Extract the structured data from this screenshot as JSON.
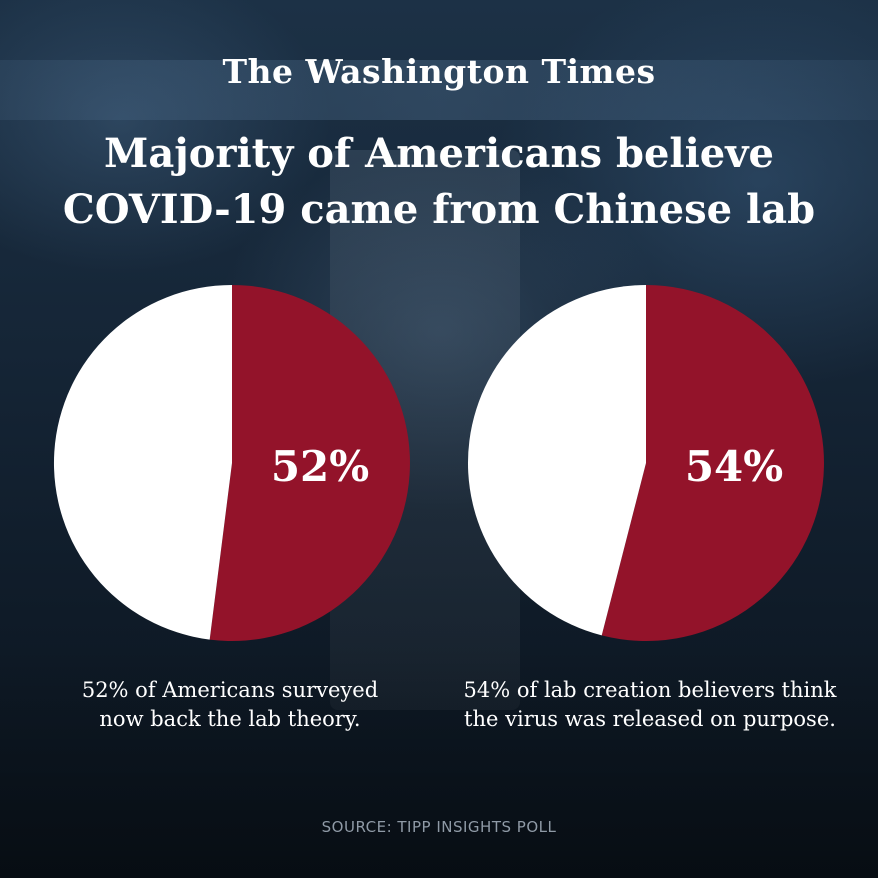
{
  "masthead": "The Washington Times",
  "headline": {
    "line1": "Majority of Americans believe",
    "line2": "COVID-19 came from Chinese lab"
  },
  "colors": {
    "highlight": "#93132a",
    "remainder": "#ffffff",
    "text": "#ffffff",
    "source_text": "#8f9aa6"
  },
  "chart_data": [
    {
      "type": "pie",
      "slices": [
        {
          "value": 52,
          "color": "#93132a"
        },
        {
          "value": 48,
          "color": "#ffffff"
        }
      ],
      "label": "52%",
      "caption_line1": "52% of Americans surveyed",
      "caption_line2": "now back the lab theory."
    },
    {
      "type": "pie",
      "slices": [
        {
          "value": 54,
          "color": "#93132a"
        },
        {
          "value": 46,
          "color": "#ffffff"
        }
      ],
      "label": "54%",
      "caption_line1": "54% of lab creation believers think",
      "caption_line2": "the virus was released on purpose."
    }
  ],
  "source": "SOURCE: TIPP INSIGHTS POLL"
}
